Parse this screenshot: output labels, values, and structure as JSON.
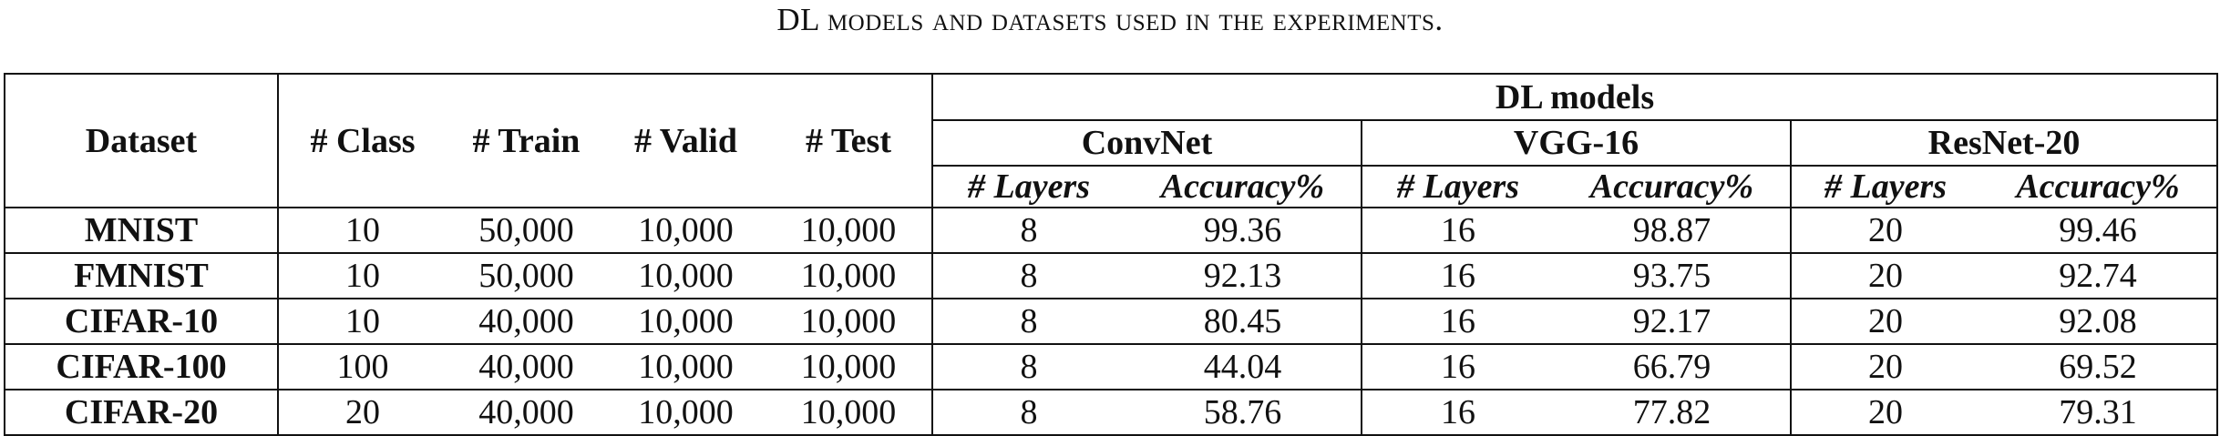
{
  "caption": "DL models and datasets used in the experiments.",
  "header": {
    "dataset": "Dataset",
    "class": "# Class",
    "train": "# Train",
    "valid": "# Valid",
    "test": "# Test",
    "group": "DL models",
    "models": [
      "ConvNet",
      "VGG-16",
      "ResNet-20"
    ],
    "layers": "# Layers",
    "accuracy": "Accuracy%"
  },
  "rows": [
    {
      "dataset": "MNIST",
      "class": "10",
      "train": "50,000",
      "valid": "10,000",
      "test": "10,000",
      "conv_layers": "8",
      "conv_acc": "99.36",
      "vgg_layers": "16",
      "vgg_acc": "98.87",
      "res_layers": "20",
      "res_acc": "99.46"
    },
    {
      "dataset": "FMNIST",
      "class": "10",
      "train": "50,000",
      "valid": "10,000",
      "test": "10,000",
      "conv_layers": "8",
      "conv_acc": "92.13",
      "vgg_layers": "16",
      "vgg_acc": "93.75",
      "res_layers": "20",
      "res_acc": "92.74"
    },
    {
      "dataset": "CIFAR-10",
      "class": "10",
      "train": "40,000",
      "valid": "10,000",
      "test": "10,000",
      "conv_layers": "8",
      "conv_acc": "80.45",
      "vgg_layers": "16",
      "vgg_acc": "92.17",
      "res_layers": "20",
      "res_acc": "92.08"
    },
    {
      "dataset": "CIFAR-100",
      "class": "100",
      "train": "40,000",
      "valid": "10,000",
      "test": "10,000",
      "conv_layers": "8",
      "conv_acc": "44.04",
      "vgg_layers": "16",
      "vgg_acc": "66.79",
      "res_layers": "20",
      "res_acc": "69.52"
    },
    {
      "dataset": "CIFAR-20",
      "class": "20",
      "train": "40,000",
      "valid": "10,000",
      "test": "10,000",
      "conv_layers": "8",
      "conv_acc": "58.76",
      "vgg_layers": "16",
      "vgg_acc": "77.82",
      "res_layers": "20",
      "res_acc": "79.31"
    }
  ]
}
